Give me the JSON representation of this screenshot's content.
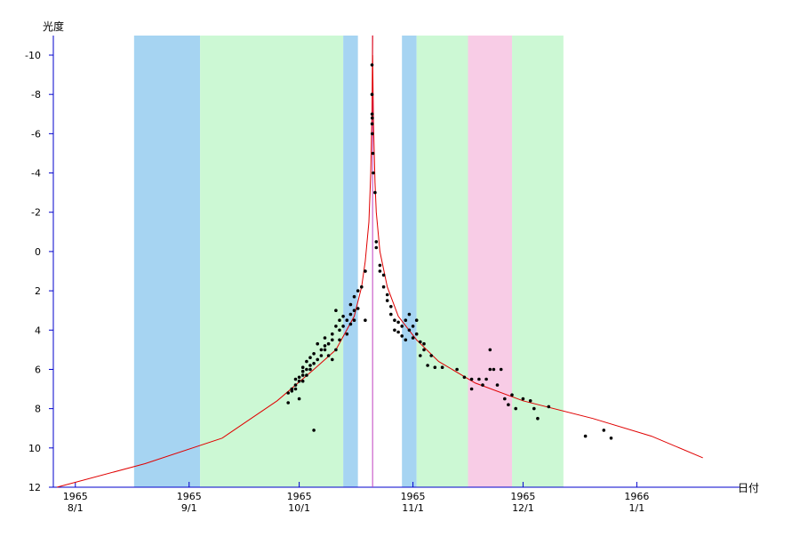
{
  "chart_data": {
    "type": "scatter",
    "title": "",
    "xlabel": "日付",
    "ylabel": "光度",
    "x_domain": [
      "1965-07-26",
      "1966-01-29"
    ],
    "ylim": [
      12,
      -11
    ],
    "y_inverted": true,
    "y_ticks": [
      -10,
      -8,
      -6,
      -4,
      -2,
      0,
      2,
      4,
      6,
      8,
      10,
      12
    ],
    "x_ticks": [
      {
        "date": "1965-08-01",
        "year": "1965",
        "md": "8/1"
      },
      {
        "date": "1965-09-01",
        "year": "1965",
        "md": "9/1"
      },
      {
        "date": "1965-10-01",
        "year": "1965",
        "md": "10/1"
      },
      {
        "date": "1965-11-01",
        "year": "1965",
        "md": "11/1"
      },
      {
        "date": "1965-12-01",
        "year": "1965",
        "md": "12/1"
      },
      {
        "date": "1966-01-01",
        "year": "1966",
        "md": "1/1"
      }
    ],
    "bands": [
      {
        "from": "1965-08-17",
        "to": "1965-09-04",
        "color": "#a6d4f2"
      },
      {
        "from": "1965-09-04",
        "to": "1965-10-13",
        "color": "#ccf8d4"
      },
      {
        "from": "1965-10-13",
        "to": "1965-10-17",
        "color": "#a6d4f2"
      },
      {
        "from": "1965-10-29",
        "to": "1965-11-02",
        "color": "#a6d4f2"
      },
      {
        "from": "1965-11-02",
        "to": "1965-11-16",
        "color": "#ccf8d4"
      },
      {
        "from": "1965-11-16",
        "to": "1965-11-28",
        "color": "#f8cce6"
      },
      {
        "from": "1965-11-28",
        "to": "1965-12-12",
        "color": "#ccf8d4"
      }
    ],
    "perihelion": {
      "date": "1965-10-21",
      "color": "#c040c0"
    },
    "axis_color": "#0000cc",
    "curve": {
      "color": "#e00000",
      "pre": [
        [
          "1965-07-27",
          12.0
        ],
        [
          "1965-08-20",
          10.8
        ],
        [
          "1965-09-10",
          9.5
        ],
        [
          "1965-09-25",
          7.6
        ],
        [
          "1965-10-05",
          6.0
        ],
        [
          "1965-10-11",
          5.0
        ],
        [
          "1965-10-16",
          3.3
        ],
        [
          "1965-10-18",
          1.8
        ],
        [
          "1965-10-19",
          0.5
        ],
        [
          "1965-10-20",
          -1.5
        ],
        [
          "1965-10-20 12:00",
          -4.0
        ],
        [
          "1965-10-20 20:00",
          -7.0
        ],
        [
          "1965-10-21",
          -11.0
        ]
      ],
      "post": [
        [
          "1965-10-21",
          -10.0
        ],
        [
          "1965-10-21 06:00",
          -6.5
        ],
        [
          "1965-10-21 16:00",
          -3.5
        ],
        [
          "1965-10-22",
          -2.0
        ],
        [
          "1965-10-23",
          0.0
        ],
        [
          "1965-10-25",
          1.8
        ],
        [
          "1965-10-28",
          3.3
        ],
        [
          "1965-11-02",
          4.5
        ],
        [
          "1965-11-08",
          5.6
        ],
        [
          "1965-11-18",
          6.7
        ],
        [
          "1965-12-01",
          7.6
        ],
        [
          "1965-12-20",
          8.5
        ],
        [
          "1966-01-05",
          9.4
        ],
        [
          "1966-01-19",
          10.5
        ]
      ]
    },
    "points": [
      [
        "1965-09-28",
        7.7
      ],
      [
        "1965-09-28",
        7.2
      ],
      [
        "1965-09-29",
        7.0
      ],
      [
        "1965-09-29",
        7.1
      ],
      [
        "1965-09-30",
        6.8
      ],
      [
        "1965-09-30",
        6.5
      ],
      [
        "1965-09-30",
        7.0
      ],
      [
        "1965-10-01",
        6.6
      ],
      [
        "1965-10-01",
        6.4
      ],
      [
        "1965-10-01",
        7.5
      ],
      [
        "1965-10-02",
        6.3
      ],
      [
        "1965-10-02",
        6.1
      ],
      [
        "1965-10-02",
        6.6
      ],
      [
        "1965-10-02",
        5.9
      ],
      [
        "1965-10-03",
        6.0
      ],
      [
        "1965-10-03",
        5.6
      ],
      [
        "1965-10-03",
        6.3
      ],
      [
        "1965-10-04",
        5.4
      ],
      [
        "1965-10-04",
        6.0
      ],
      [
        "1965-10-04",
        5.8
      ],
      [
        "1965-10-05",
        5.2
      ],
      [
        "1965-10-05",
        5.7
      ],
      [
        "1965-10-05",
        9.1
      ],
      [
        "1965-10-06",
        4.7
      ],
      [
        "1965-10-06",
        5.5
      ],
      [
        "1965-10-07",
        5.0
      ],
      [
        "1965-10-07",
        5.3
      ],
      [
        "1965-10-08",
        4.8
      ],
      [
        "1965-10-08",
        5.0
      ],
      [
        "1965-10-08",
        4.4
      ],
      [
        "1965-10-09",
        5.3
      ],
      [
        "1965-10-09",
        4.7
      ],
      [
        "1965-10-10",
        4.5
      ],
      [
        "1965-10-10",
        5.5
      ],
      [
        "1965-10-10",
        4.2
      ],
      [
        "1965-10-11",
        3.0
      ],
      [
        "1965-10-11",
        3.8
      ],
      [
        "1965-10-11",
        5.0
      ],
      [
        "1965-10-12",
        3.5
      ],
      [
        "1965-10-12",
        4.0
      ],
      [
        "1965-10-12",
        4.5
      ],
      [
        "1965-10-13",
        3.3
      ],
      [
        "1965-10-13",
        3.8
      ],
      [
        "1965-10-14",
        4.2
      ],
      [
        "1965-10-14",
        3.5
      ],
      [
        "1965-10-15",
        3.2
      ],
      [
        "1965-10-15",
        3.7
      ],
      [
        "1965-10-15",
        2.7
      ],
      [
        "1965-10-16",
        2.3
      ],
      [
        "1965-10-16",
        3.0
      ],
      [
        "1965-10-16",
        3.5
      ],
      [
        "1965-10-17",
        2.0
      ],
      [
        "1965-10-17",
        2.9
      ],
      [
        "1965-10-18",
        1.8
      ],
      [
        "1965-10-19",
        1.0
      ],
      [
        "1965-10-19",
        1.0
      ],
      [
        "1965-10-19",
        3.5
      ],
      [
        "1965-10-20 20:00",
        -9.5
      ],
      [
        "1965-10-20 20:00",
        -8.0
      ],
      [
        "1965-10-20 21:00",
        -7.0
      ],
      [
        "1965-10-20 21:00",
        -6.5
      ],
      [
        "1965-10-20 22:00",
        -6.8
      ],
      [
        "1965-10-20 22:00",
        -6.0
      ],
      [
        "1965-10-21 02:00",
        -5.0
      ],
      [
        "1965-10-21 04:00",
        -4.0
      ],
      [
        "1965-10-21 16:00",
        -3.0
      ],
      [
        "1965-10-22",
        -0.5
      ],
      [
        "1965-10-22",
        -0.2
      ],
      [
        "1965-10-23",
        0.7
      ],
      [
        "1965-10-23",
        1.0
      ],
      [
        "1965-10-24",
        1.2
      ],
      [
        "1965-10-24",
        1.8
      ],
      [
        "1965-10-25",
        2.2
      ],
      [
        "1965-10-25",
        2.5
      ],
      [
        "1965-10-26",
        2.8
      ],
      [
        "1965-10-26",
        3.2
      ],
      [
        "1965-10-27",
        3.5
      ],
      [
        "1965-10-27",
        4.0
      ],
      [
        "1965-10-28",
        3.6
      ],
      [
        "1965-10-28",
        4.1
      ],
      [
        "1965-10-29",
        3.8
      ],
      [
        "1965-10-29",
        4.3
      ],
      [
        "1965-10-30",
        3.5
      ],
      [
        "1965-10-30",
        4.5
      ],
      [
        "1965-10-31",
        3.2
      ],
      [
        "1965-10-31",
        4.0
      ],
      [
        "1965-11-01",
        3.8
      ],
      [
        "1965-11-01",
        4.4
      ],
      [
        "1965-11-02",
        3.5
      ],
      [
        "1965-11-02",
        4.2
      ],
      [
        "1965-11-03",
        4.6
      ],
      [
        "1965-11-03",
        5.3
      ],
      [
        "1965-11-04",
        4.7
      ],
      [
        "1965-11-04",
        5.0
      ],
      [
        "1965-11-05",
        5.8
      ],
      [
        "1965-11-06",
        5.3
      ],
      [
        "1965-11-07",
        5.9
      ],
      [
        "1965-11-09",
        5.9
      ],
      [
        "1965-11-13",
        6.0
      ],
      [
        "1965-11-15",
        6.4
      ],
      [
        "1965-11-17",
        7.0
      ],
      [
        "1965-11-17",
        6.5
      ],
      [
        "1965-11-19",
        6.5
      ],
      [
        "1965-11-20",
        6.8
      ],
      [
        "1965-11-21",
        6.5
      ],
      [
        "1965-11-22",
        6.0
      ],
      [
        "1965-11-22",
        5.0
      ],
      [
        "1965-11-23",
        6.0
      ],
      [
        "1965-11-24",
        6.8
      ],
      [
        "1965-11-25",
        6.0
      ],
      [
        "1965-11-26",
        7.5
      ],
      [
        "1965-11-27",
        7.8
      ],
      [
        "1965-11-28",
        7.3
      ],
      [
        "1965-11-29",
        8.0
      ],
      [
        "1965-12-01",
        7.5
      ],
      [
        "1965-12-03",
        7.6
      ],
      [
        "1965-12-04",
        8.0
      ],
      [
        "1965-12-05",
        8.5
      ],
      [
        "1965-12-08",
        7.9
      ],
      [
        "1965-12-18",
        9.4
      ],
      [
        "1965-12-23",
        9.1
      ],
      [
        "1965-12-25",
        9.5
      ]
    ]
  }
}
